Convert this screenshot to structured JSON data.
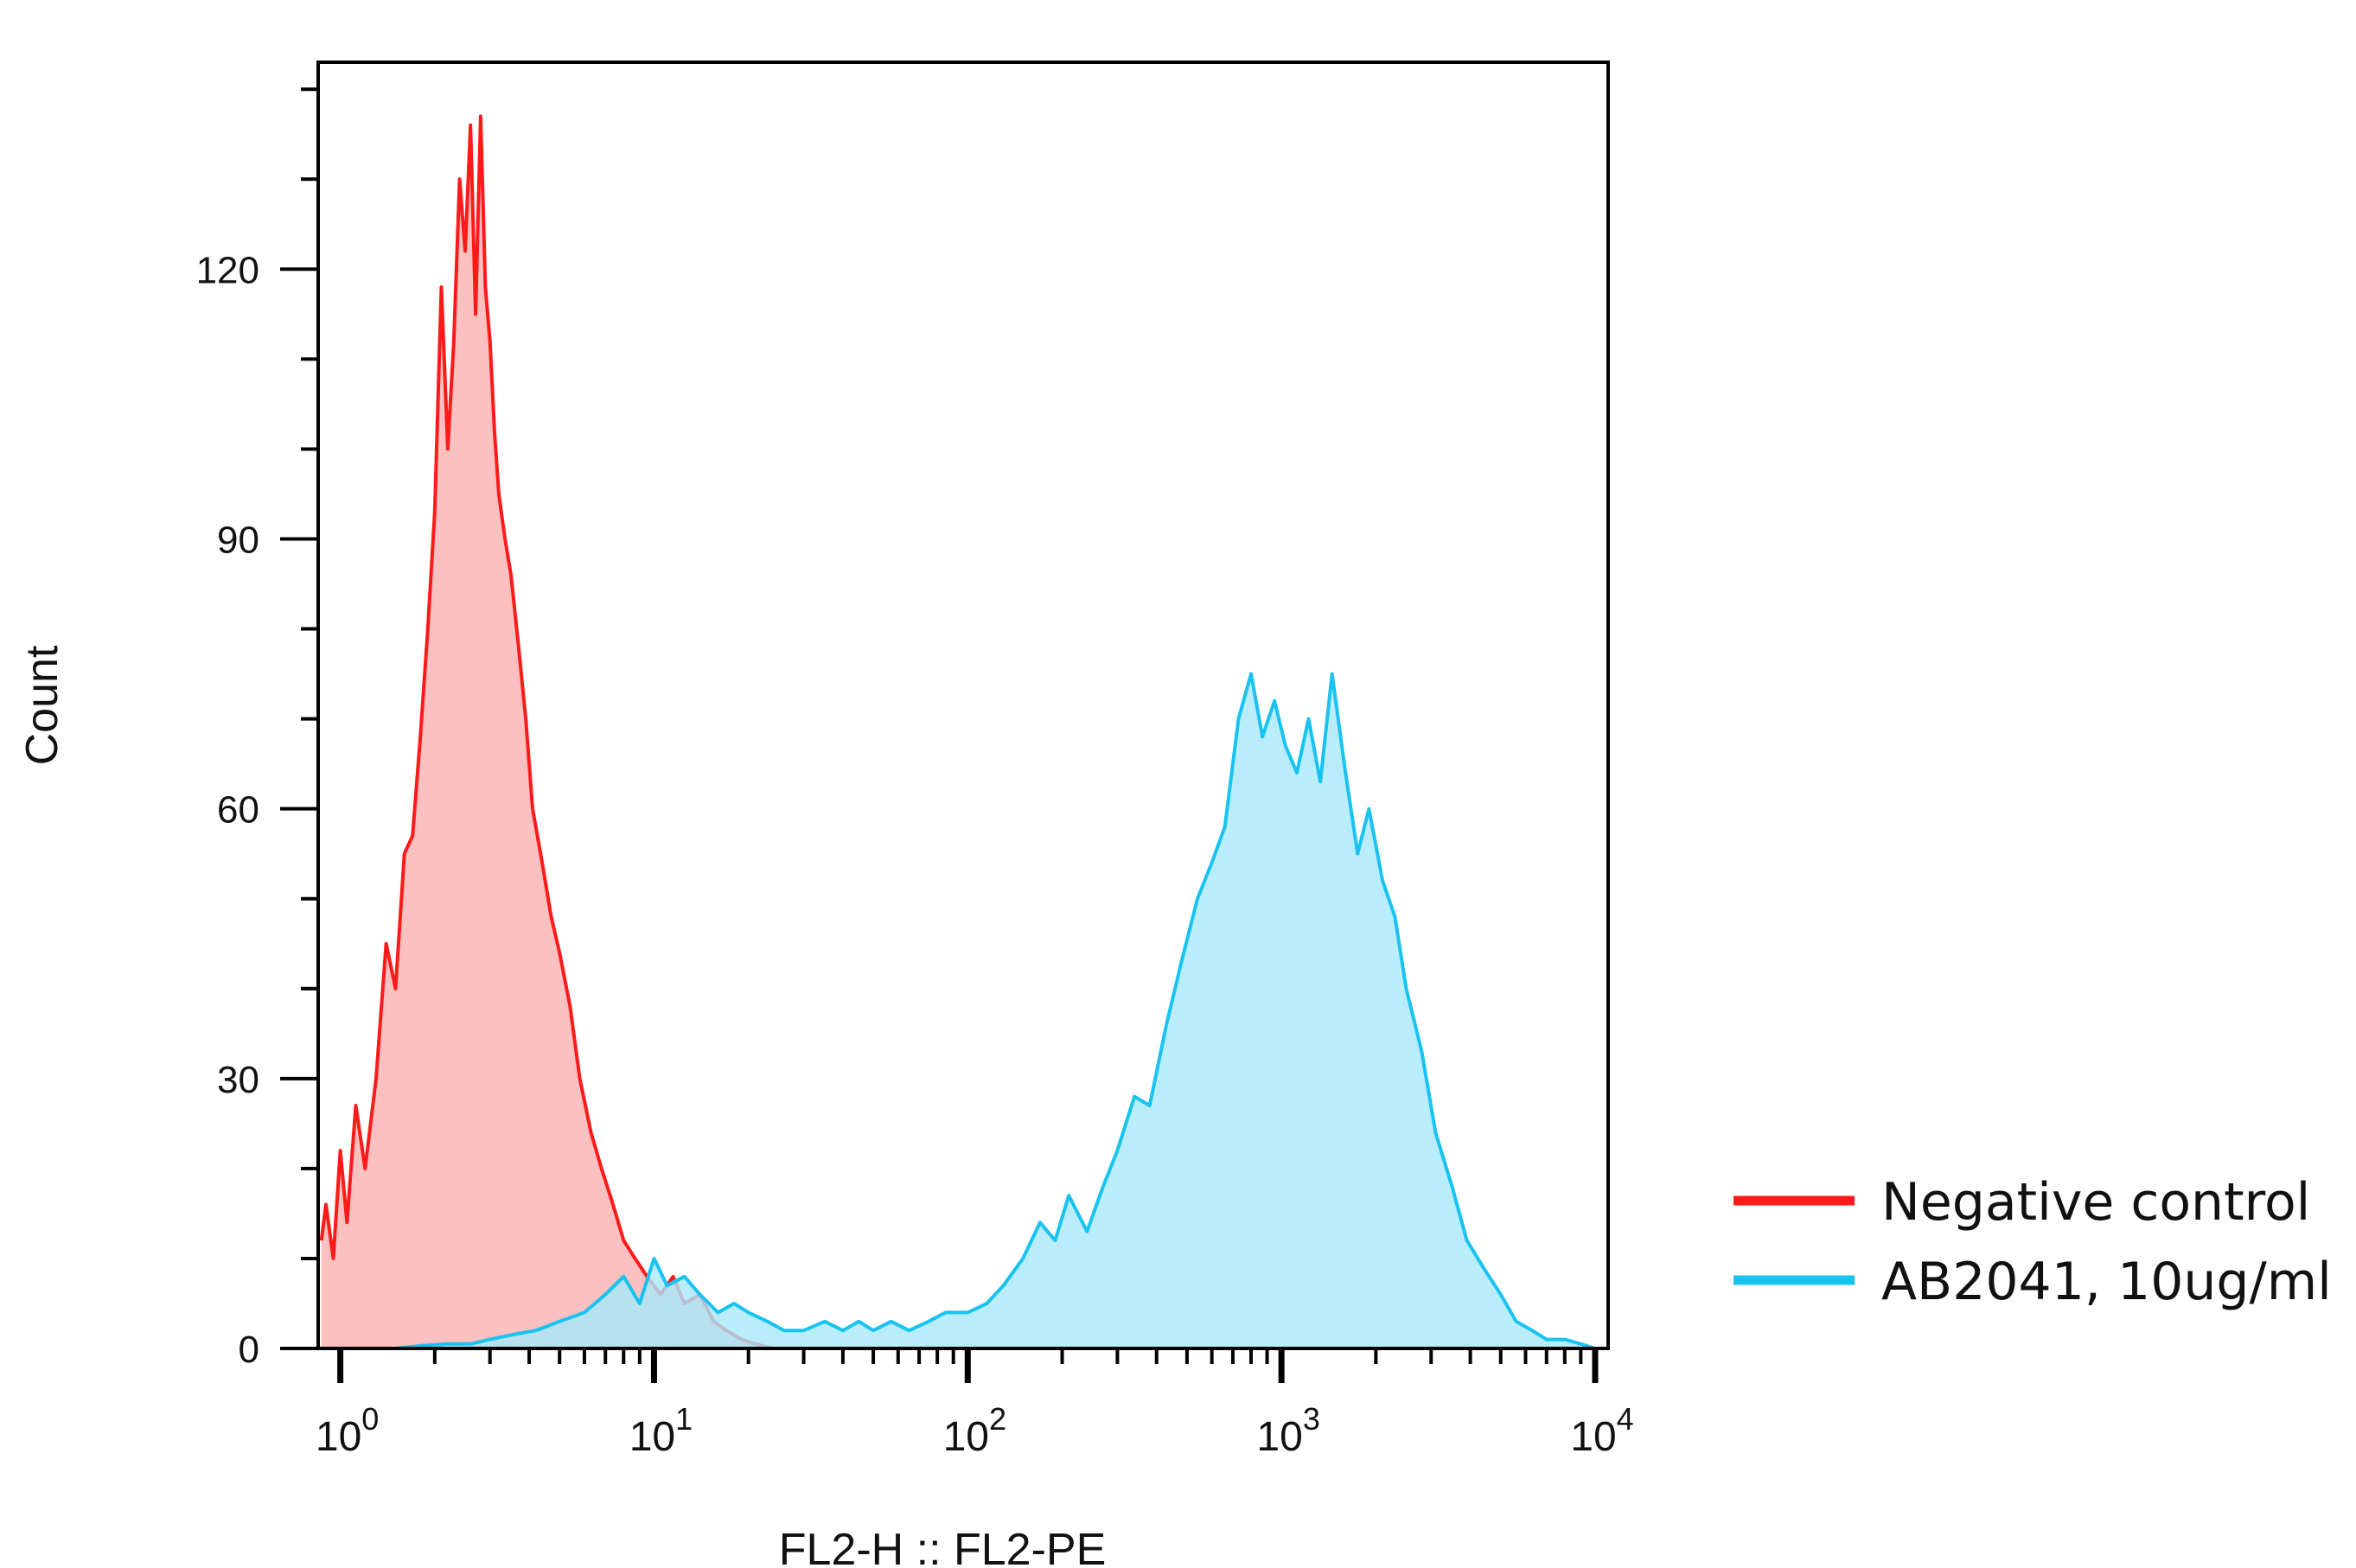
{
  "chart_data": {
    "type": "area",
    "title": "",
    "xlabel": "FL2-H :: FL2-PE",
    "ylabel": "Count",
    "x_scale": "log",
    "xlim": [
      0.85,
      11000
    ],
    "ylim": [
      0,
      143
    ],
    "x_ticks": [
      {
        "value": 1,
        "base": "10",
        "exponent": "0"
      },
      {
        "value": 10,
        "base": "10",
        "exponent": "1"
      },
      {
        "value": 100,
        "base": "10",
        "exponent": "2"
      },
      {
        "value": 1000,
        "base": "10",
        "exponent": "3"
      },
      {
        "value": 10000,
        "base": "10",
        "exponent": "4"
      }
    ],
    "y_ticks": [
      {
        "value": 0,
        "label": "0"
      },
      {
        "value": 30,
        "label": "30"
      },
      {
        "value": 60,
        "label": "60"
      },
      {
        "value": 90,
        "label": "90"
      },
      {
        "value": 120,
        "label": "120"
      }
    ],
    "grid": false,
    "legend_position": "right",
    "series": [
      {
        "name": "Negative control",
        "line_color": "#ff1a1a",
        "fill_color": "#fab0b0",
        "x": [
          0.87,
          0.9,
          0.95,
          1.0,
          1.05,
          1.12,
          1.2,
          1.3,
          1.4,
          1.5,
          1.6,
          1.7,
          1.8,
          1.9,
          2.0,
          2.1,
          2.2,
          2.3,
          2.4,
          2.5,
          2.6,
          2.7,
          2.8,
          2.9,
          3.0,
          3.1,
          3.2,
          3.35,
          3.5,
          3.7,
          3.9,
          4.1,
          4.4,
          4.7,
          5.0,
          5.4,
          5.8,
          6.3,
          6.8,
          7.4,
          8.0,
          8.7,
          9.5,
          10.5,
          11.5,
          12.5,
          14,
          15.5,
          17,
          19,
          21,
          24
        ],
        "y": [
          12,
          16,
          10,
          22,
          14,
          27,
          20,
          30,
          45,
          40,
          55,
          57,
          68,
          80,
          93,
          118,
          100,
          112,
          130,
          122,
          136,
          115,
          137,
          118,
          112,
          102,
          95,
          90,
          86,
          78,
          70,
          60,
          54,
          48,
          44,
          38,
          30,
          24,
          20,
          16,
          12,
          10,
          8,
          6,
          8,
          5,
          6,
          3,
          2,
          1,
          0.5,
          0
        ]
      },
      {
        "name": "AB2041, 10ug/ml",
        "line_color": "#19c3f0",
        "fill_color": "#a8e9fb",
        "x": [
          1.5,
          1.8,
          2.2,
          2.6,
          3.0,
          3.5,
          4.2,
          5.0,
          6.0,
          7.0,
          8.0,
          9.0,
          10,
          11,
          12.5,
          14,
          16,
          18,
          20,
          23,
          26,
          30,
          35,
          40,
          45,
          50,
          57,
          65,
          75,
          85,
          100,
          115,
          130,
          150,
          170,
          190,
          210,
          240,
          270,
          300,
          340,
          380,
          430,
          480,
          540,
          600,
          660,
          730,
          800,
          870,
          950,
          1030,
          1120,
          1220,
          1330,
          1450,
          1600,
          1750,
          1900,
          2100,
          2300,
          2500,
          2800,
          3100,
          3500,
          3900,
          4400,
          5000,
          5600,
          6300,
          7000,
          8000,
          9000,
          10000,
          11000
        ],
        "y": [
          0,
          0.3,
          0.5,
          0.5,
          1,
          1.5,
          2,
          3,
          4,
          6,
          8,
          5,
          10,
          7,
          8,
          6,
          4,
          5,
          4,
          3,
          2,
          2,
          3,
          2,
          3,
          2,
          3,
          2,
          3,
          4,
          4,
          5,
          7,
          10,
          14,
          12,
          17,
          13,
          18,
          22,
          28,
          27,
          36,
          43,
          50,
          54,
          58,
          70,
          75,
          68,
          72,
          67,
          64,
          70,
          63,
          75,
          64,
          55,
          60,
          52,
          48,
          40,
          33,
          24,
          18,
          12,
          9,
          6,
          3,
          2,
          1,
          1,
          0.5,
          0,
          0
        ]
      }
    ]
  }
}
